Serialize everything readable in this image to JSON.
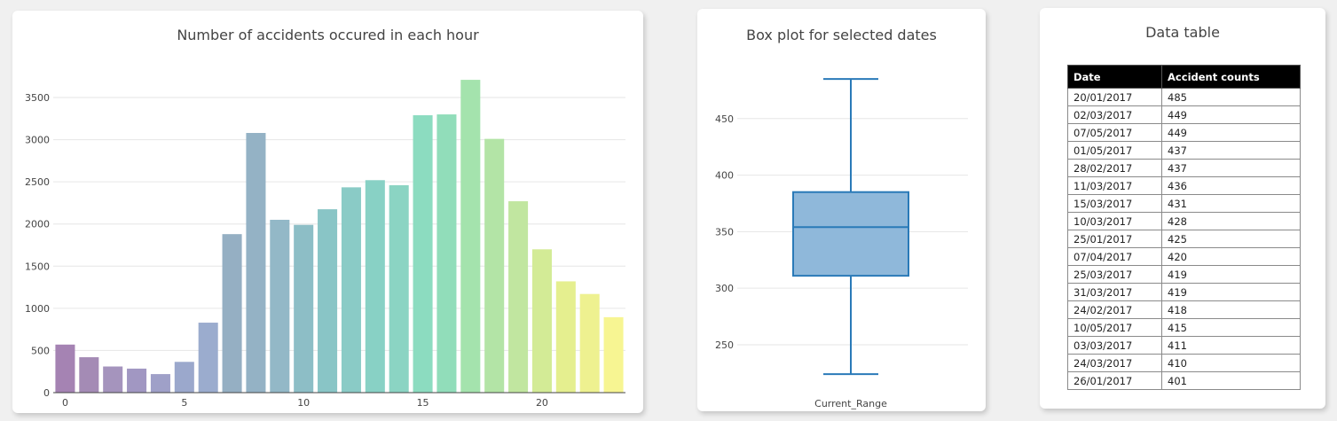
{
  "chart_data": [
    {
      "type": "bar",
      "title": "Number of accidents occured in each hour",
      "categories": [
        0,
        1,
        2,
        3,
        4,
        5,
        6,
        7,
        8,
        9,
        10,
        11,
        12,
        13,
        14,
        15,
        16,
        17,
        18,
        19,
        20,
        21,
        22,
        23
      ],
      "values": [
        570,
        420,
        310,
        285,
        220,
        365,
        830,
        1880,
        3080,
        2050,
        1990,
        2175,
        2435,
        2520,
        2460,
        3290,
        3300,
        3710,
        3010,
        2270,
        1700,
        1320,
        1170,
        895
      ],
      "colors": [
        "#a583b3",
        "#a48bb5",
        "#a594bd",
        "#a197c2",
        "#9fa0c8",
        "#9ba8cc",
        "#9bacce",
        "#95afc3",
        "#94b2c5",
        "#93b8c7",
        "#8dbec6",
        "#89c5c6",
        "#8acbc6",
        "#88d1c5",
        "#8bd4c3",
        "#8cdcc0",
        "#91ddba",
        "#a4e3ad",
        "#b3e4a6",
        "#c1e6a0",
        "#d3eb96",
        "#e5ef8f",
        "#eef190",
        "#f7f592"
      ],
      "xticks": [
        0,
        5,
        10,
        15,
        20
      ],
      "yticks": [
        0,
        500,
        1000,
        1500,
        2000,
        2500,
        3000,
        3500
      ],
      "xlim": [
        -0.5,
        23.5
      ],
      "ylim": [
        0,
        3900
      ],
      "grid": true
    },
    {
      "type": "box",
      "title": "Box plot for selected dates",
      "category": "Current_Range",
      "min": 224,
      "q1": 311,
      "median": 354,
      "q3": 385,
      "max": 485,
      "yticks": [
        250,
        300,
        350,
        400,
        450
      ],
      "ylim": [
        210,
        500
      ],
      "fill": "#8fb8da",
      "stroke": "#2a7ab8",
      "grid": true
    },
    {
      "type": "table",
      "title": "Data table",
      "columns": [
        "Date",
        "Accident counts"
      ],
      "rows": [
        [
          "20/01/2017",
          "485"
        ],
        [
          "02/03/2017",
          "449"
        ],
        [
          "07/05/2017",
          "449"
        ],
        [
          "01/05/2017",
          "437"
        ],
        [
          "28/02/2017",
          "437"
        ],
        [
          "11/03/2017",
          "436"
        ],
        [
          "15/03/2017",
          "431"
        ],
        [
          "10/03/2017",
          "428"
        ],
        [
          "25/01/2017",
          "425"
        ],
        [
          "07/04/2017",
          "420"
        ],
        [
          "25/03/2017",
          "419"
        ],
        [
          "31/03/2017",
          "419"
        ],
        [
          "24/02/2017",
          "418"
        ],
        [
          "10/05/2017",
          "415"
        ],
        [
          "03/03/2017",
          "411"
        ],
        [
          "24/03/2017",
          "410"
        ],
        [
          "26/01/2017",
          "401"
        ]
      ]
    }
  ]
}
